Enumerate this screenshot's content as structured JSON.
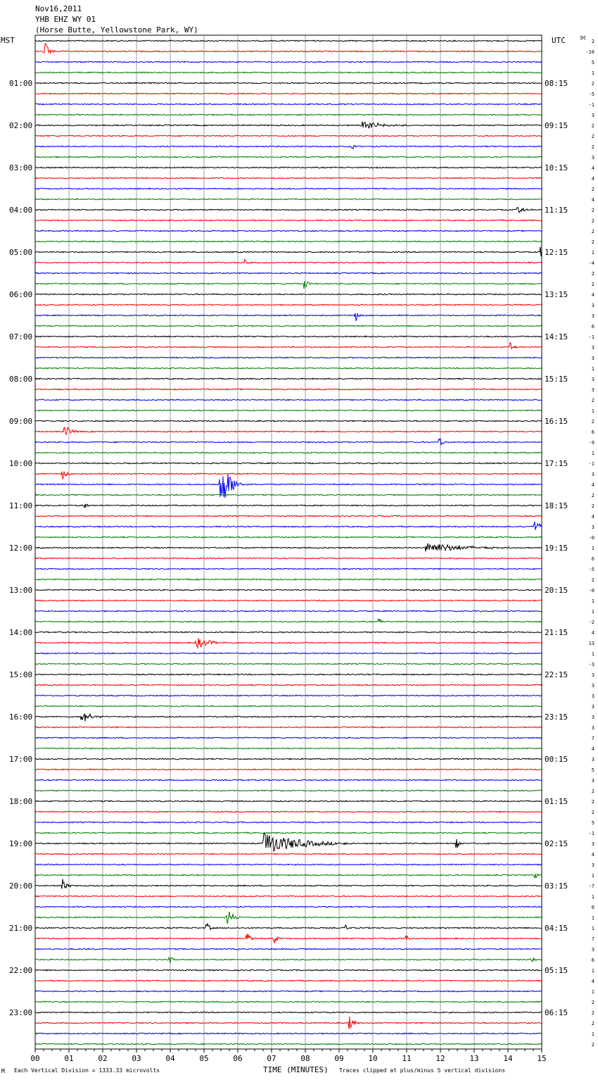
{
  "header": {
    "date": "Nov16,2011",
    "station": "YHB EHZ WY 01",
    "location": "(Horse Butte, Yellowstone Park, WY)"
  },
  "left_zone_label": "MST",
  "right_zone_label": "UTC",
  "dc_label": "DC",
  "footer": {
    "corner_mark": "M",
    "scale_note": "Each Vertical Division = 1333.33 microvolts",
    "xlabel": "TIME (MINUTES)",
    "clip_note": "Traces clipped at plus/minus 5 vertical divisions"
  },
  "colors": {
    "trace_cycle": [
      "#000000",
      "#ff0000",
      "#0000ff",
      "#007f00"
    ],
    "grid": "#a0a0a0",
    "frame": "#000000"
  },
  "chart_data": {
    "type": "line",
    "title": "YHB EHZ WY 01",
    "xlabel": "TIME (MINUTES)",
    "xlim": [
      0,
      15
    ],
    "x_ticks": [
      "00",
      "01",
      "02",
      "03",
      "04",
      "05",
      "06",
      "07",
      "08",
      "09",
      "10",
      "11",
      "12",
      "13",
      "14",
      "15"
    ],
    "traces_per_hour": 4,
    "minutes_per_trace": 15,
    "hour_labels_mst": [
      "01:00",
      "02:00",
      "03:00",
      "04:00",
      "05:00",
      "06:00",
      "07:00",
      "08:00",
      "09:00",
      "10:00",
      "11:00",
      "12:00",
      "13:00",
      "14:00",
      "15:00",
      "16:00",
      "17:00",
      "18:00",
      "19:00",
      "20:00",
      "21:00",
      "22:00",
      "23:00"
    ],
    "hour_labels_utc": [
      "08:15",
      "09:15",
      "10:15",
      "11:15",
      "12:15",
      "13:15",
      "14:15",
      "15:15",
      "16:15",
      "17:15",
      "18:15",
      "19:15",
      "20:15",
      "21:15",
      "22:15",
      "23:15",
      "00:15",
      "01:15",
      "02:15",
      "03:15",
      "04:15",
      "05:15",
      "06:15"
    ],
    "dc_offsets": [
      "2",
      "-10",
      "5",
      "1",
      "2",
      "-5",
      "-1",
      "3",
      "2",
      "2",
      "2",
      "3",
      "4",
      "4",
      "2",
      "4",
      "2",
      "2",
      "2",
      "2",
      "1",
      "-4",
      "2",
      "2",
      "4",
      "3",
      "3",
      "6",
      "-1",
      "3",
      "3",
      "1",
      "3",
      "3",
      "2",
      "1",
      "2",
      "6",
      "-9",
      "1",
      "-1",
      "3",
      "4",
      "2",
      "2",
      "4",
      "3",
      "-0",
      "1",
      "6",
      "-5",
      "2",
      "-0",
      "1",
      "1",
      "-2",
      "4",
      "13",
      "1",
      "-3",
      "3",
      "3",
      "3",
      "3",
      "3",
      "3",
      "7",
      "4",
      "3",
      "5",
      "3",
      "2",
      "2",
      "2",
      "5",
      "-1",
      "3",
      "4",
      "3",
      "1",
      "-7",
      "1",
      "0",
      "1",
      "1",
      "7",
      "3",
      "6",
      "1",
      "4",
      "1",
      "2",
      "2",
      "2",
      "1",
      "2"
    ],
    "events": [
      {
        "trace": 1,
        "minute": 0.3,
        "amp": 0.9,
        "dur": 0.3
      },
      {
        "trace": 8,
        "minute": 9.7,
        "amp": 0.45,
        "dur": 1.4
      },
      {
        "trace": 10,
        "minute": 9.4,
        "amp": 0.45,
        "dur": 0.15
      },
      {
        "trace": 16,
        "minute": 14.3,
        "amp": 0.35,
        "dur": 0.5
      },
      {
        "trace": 20,
        "minute": 15.0,
        "amp": 0.5,
        "dur": 0.4
      },
      {
        "trace": 21,
        "minute": 6.2,
        "amp": 0.5,
        "dur": 0.2
      },
      {
        "trace": 23,
        "minute": 8.0,
        "amp": 0.7,
        "dur": 0.2
      },
      {
        "trace": 26,
        "minute": 9.5,
        "amp": 0.5,
        "dur": 0.2
      },
      {
        "trace": 29,
        "minute": 14.1,
        "amp": 0.4,
        "dur": 0.2
      },
      {
        "trace": 37,
        "minute": 0.9,
        "amp": 0.5,
        "dur": 0.5
      },
      {
        "trace": 38,
        "minute": 12.0,
        "amp": 0.4,
        "dur": 0.3
      },
      {
        "trace": 41,
        "minute": 0.8,
        "amp": 0.5,
        "dur": 0.4
      },
      {
        "trace": 42,
        "minute": 5.5,
        "amp": 2.3,
        "dur": 0.8
      },
      {
        "trace": 44,
        "minute": 1.5,
        "amp": 0.4,
        "dur": 0.15
      },
      {
        "trace": 46,
        "minute": 14.8,
        "amp": 0.6,
        "dur": 0.4
      },
      {
        "trace": 48,
        "minute": 11.6,
        "amp": 0.6,
        "dur": 2.5
      },
      {
        "trace": 55,
        "minute": 10.2,
        "amp": 0.35,
        "dur": 0.2
      },
      {
        "trace": 57,
        "minute": 4.8,
        "amp": 0.5,
        "dur": 1.1
      },
      {
        "trace": 64,
        "minute": 1.4,
        "amp": 0.55,
        "dur": 0.8
      },
      {
        "trace": 76,
        "minute": 6.8,
        "amp": 1.1,
        "dur": 2.7
      },
      {
        "trace": 76,
        "minute": 12.5,
        "amp": 0.45,
        "dur": 0.2
      },
      {
        "trace": 79,
        "minute": 14.8,
        "amp": 0.3,
        "dur": 0.4
      },
      {
        "trace": 80,
        "minute": 0.8,
        "amp": 0.7,
        "dur": 0.35
      },
      {
        "trace": 83,
        "minute": 5.7,
        "amp": 0.8,
        "dur": 0.5
      },
      {
        "trace": 84,
        "minute": 5.1,
        "amp": 0.4,
        "dur": 0.3
      },
      {
        "trace": 84,
        "minute": 9.2,
        "amp": 0.4,
        "dur": 0.2
      },
      {
        "trace": 85,
        "minute": 6.3,
        "amp": 0.6,
        "dur": 0.25
      },
      {
        "trace": 85,
        "minute": 7.1,
        "amp": 0.6,
        "dur": 0.2
      },
      {
        "trace": 85,
        "minute": 11.0,
        "amp": 0.7,
        "dur": 0.15
      },
      {
        "trace": 87,
        "minute": 4.0,
        "amp": 0.4,
        "dur": 0.2
      },
      {
        "trace": 87,
        "minute": 14.7,
        "amp": 0.4,
        "dur": 0.3
      },
      {
        "trace": 93,
        "minute": 9.3,
        "amp": 0.7,
        "dur": 0.3
      }
    ]
  }
}
